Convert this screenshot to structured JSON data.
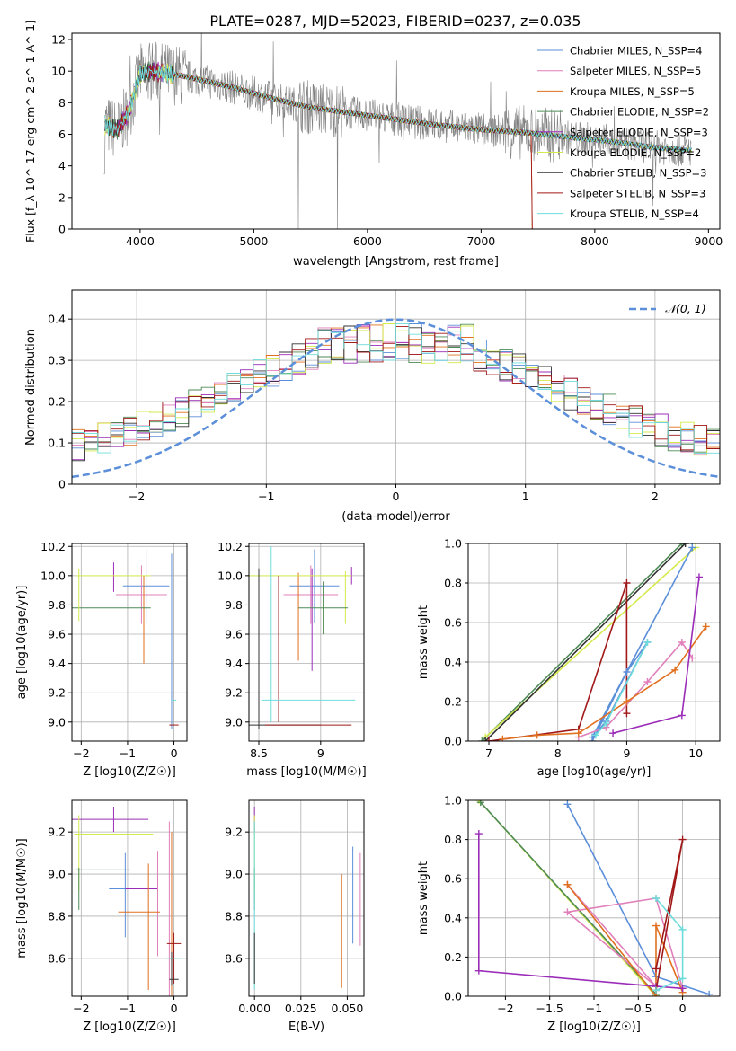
{
  "figure": {
    "title": "PLATE=0287, MJD=52023, FIBERID=0237, z=0.035"
  },
  "colors": {
    "chabrier_miles": "#5b8fd9",
    "salpeter_miles": "#e07fba",
    "kroupa_miles": "#e0701f",
    "chabrier_elodie": "#4e8a56",
    "salpeter_elodie": "#9b2db8",
    "kroupa_elodie": "#d4ea4c",
    "chabrier_stelib": "#333333",
    "salpeter_stelib": "#a01818",
    "kroupa_stelib": "#6fdcdc",
    "data": "#808080",
    "normal": "#5b8fd9"
  },
  "chart_data": [
    {
      "id": "spectrum",
      "type": "line",
      "title": "PLATE=0287, MJD=52023, FIBERID=0237, z=0.035",
      "xlabel": "wavelength [Angstrom, rest frame]",
      "ylabel": "Flux [f_λ 10^-17 erg cm^-2 s^-1 A^-1]",
      "xlim": [
        3400,
        9100
      ],
      "ylim": [
        0,
        12.4
      ],
      "xticks": [
        4000,
        5000,
        6000,
        7000,
        8000,
        9000
      ],
      "yticks": [
        0,
        2,
        4,
        6,
        8,
        10,
        12
      ],
      "legend_position": "top-right",
      "series": [
        {
          "name": "Chabrier MILES, N_SSP=4",
          "color_key": "chabrier_miles"
        },
        {
          "name": "Salpeter MILES, N_SSP=5",
          "color_key": "salpeter_miles"
        },
        {
          "name": "Kroupa MILES, N_SSP=5",
          "color_key": "kroupa_miles"
        },
        {
          "name": "Chabrier ELODIE, N_SSP=2",
          "color_key": "chabrier_elodie"
        },
        {
          "name": "Salpeter ELODIE, N_SSP=3",
          "color_key": "salpeter_elodie"
        },
        {
          "name": "Kroupa ELODIE, N_SSP=2",
          "color_key": "kroupa_elodie"
        },
        {
          "name": "Chabrier STELIB, N_SSP=3",
          "color_key": "chabrier_stelib"
        },
        {
          "name": "Salpeter STELIB, N_SSP=3",
          "color_key": "salpeter_stelib"
        },
        {
          "name": "Kroupa STELIB, N_SSP=4",
          "color_key": "kroupa_stelib"
        }
      ],
      "continuum": [
        [
          3680,
          6.6
        ],
        [
          3800,
          6.3
        ],
        [
          3900,
          7.4
        ],
        [
          4000,
          9.8
        ],
        [
          4100,
          10.0
        ],
        [
          4300,
          9.8
        ],
        [
          4500,
          9.5
        ],
        [
          4800,
          9.0
        ],
        [
          5000,
          8.6
        ],
        [
          5200,
          8.2
        ],
        [
          5500,
          7.7
        ],
        [
          5800,
          7.4
        ],
        [
          6000,
          7.2
        ],
        [
          6300,
          6.9
        ],
        [
          6600,
          6.6
        ],
        [
          7000,
          6.3
        ],
        [
          7400,
          6.1
        ],
        [
          7800,
          5.8
        ],
        [
          8200,
          5.5
        ],
        [
          8500,
          5.2
        ],
        [
          8800,
          5.0
        ]
      ]
    },
    {
      "id": "residuals",
      "type": "histogram",
      "xlabel": "(data-model)/error",
      "ylabel": "Normed distribution",
      "xlim": [
        -2.5,
        2.5
      ],
      "ylim": [
        0,
        0.47
      ],
      "xticks": [
        -2,
        -1,
        0,
        1,
        2
      ],
      "yticks": [
        0.0,
        0.1,
        0.2,
        0.3,
        0.4
      ],
      "grid": true,
      "bin_width": 0.1,
      "legend": "N(0,1)",
      "legend_position": "top-right"
    },
    {
      "id": "age_vs_Z",
      "type": "errorbar",
      "xlabel": "Z [log10(Z/Z☉)]",
      "ylabel": "age [log10(age/yr)]",
      "xlim": [
        -2.2,
        0.28
      ],
      "ylim": [
        8.87,
        10.22
      ],
      "xticks": [
        -2,
        -1,
        0
      ],
      "yticks": [
        9.0,
        9.2,
        9.4,
        9.6,
        9.8,
        10.0,
        10.2
      ],
      "grid": true,
      "points": [
        {
          "c": "chabrier_miles",
          "x": -0.6,
          "xe": 0.5,
          "y": 9.93,
          "ye": 0.25
        },
        {
          "c": "chabrier_miles",
          "x": -0.05,
          "xe": 0.0,
          "y": 9.55,
          "ye": 0.6
        },
        {
          "c": "salpeter_miles",
          "x": -0.7,
          "xe": 0.55,
          "y": 9.87,
          "ye": 0.2
        },
        {
          "c": "kroupa_miles",
          "x": -0.65,
          "xe": 0.0,
          "y": 9.7,
          "ye": 0.3
        },
        {
          "c": "chabrier_elodie",
          "x": -1.45,
          "xe": 0.95,
          "y": 9.78,
          "ye": 0.0
        },
        {
          "c": "salpeter_elodie",
          "x": -1.3,
          "xe": 0.0,
          "y": 9.99,
          "ye": 0.1
        },
        {
          "c": "kroupa_elodie",
          "x": -1.3,
          "xe": 0.8,
          "y": 10.0,
          "ye": 0.0
        },
        {
          "c": "kroupa_elodie",
          "x": -2.05,
          "xe": 0.0,
          "y": 9.87,
          "ye": 0.18
        },
        {
          "c": "chabrier_stelib",
          "x": -0.02,
          "xe": 0.0,
          "y": 9.5,
          "ye": 0.55
        },
        {
          "c": "salpeter_stelib",
          "x": 0.0,
          "xe": 0.1,
          "y": 8.98,
          "ye": 0.0
        },
        {
          "c": "kroupa_stelib",
          "x": 0.0,
          "xe": 0.05,
          "y": 9.15,
          "ye": 0.0
        }
      ]
    },
    {
      "id": "age_vs_mass",
      "type": "errorbar",
      "xlabel": "mass [log10(M/M☉)]",
      "xlim": [
        8.42,
        9.35
      ],
      "ylim": [
        8.87,
        10.22
      ],
      "xticks": [
        8.5,
        9.0
      ],
      "yticks": [
        9.0,
        9.2,
        9.4,
        9.6,
        9.8,
        10.0,
        10.2
      ],
      "grid": true,
      "points": [
        {
          "c": "chabrier_miles",
          "x": 8.95,
          "xe": 0.2,
          "y": 9.93,
          "ye": 0.25
        },
        {
          "c": "salpeter_miles",
          "x": 8.92,
          "xe": 0.22,
          "y": 9.87,
          "ye": 0.2
        },
        {
          "c": "salpeter_elodie",
          "x": 8.93,
          "xe": 0.0,
          "y": 9.7,
          "ye": 0.35
        },
        {
          "c": "salpeter_elodie",
          "x": 9.25,
          "xe": 0.0,
          "y": 10.0,
          "ye": 0.06
        },
        {
          "c": "kroupa_miles",
          "x": 8.82,
          "xe": 0.0,
          "y": 9.72,
          "ye": 0.3
        },
        {
          "c": "kroupa_elodie",
          "x": 8.8,
          "xe": 0.45,
          "y": 10.0,
          "ye": 0.0
        },
        {
          "c": "kroupa_elodie",
          "x": 9.2,
          "xe": 0.0,
          "y": 9.85,
          "ye": 0.18
        },
        {
          "c": "chabrier_elodie",
          "x": 9.02,
          "xe": 0.2,
          "y": 9.78,
          "ye": 0.18
        },
        {
          "c": "chabrier_stelib",
          "x": 8.5,
          "xe": 0.0,
          "y": 9.5,
          "ye": 0.55
        },
        {
          "c": "chabrier_stelib",
          "x": 8.7,
          "xe": 0.3,
          "y": 8.98,
          "ye": 0.0
        },
        {
          "c": "salpeter_stelib",
          "x": 8.66,
          "xe": 0.0,
          "y": 9.5,
          "ye": 0.5
        },
        {
          "c": "salpeter_stelib",
          "x": 8.9,
          "xe": 0.35,
          "y": 8.98,
          "ye": 0.0
        },
        {
          "c": "kroupa_stelib",
          "x": 8.6,
          "xe": 0.0,
          "y": 9.6,
          "ye": 0.6
        },
        {
          "c": "kroupa_stelib",
          "x": 8.9,
          "xe": 0.38,
          "y": 9.15,
          "ye": 0.0
        }
      ]
    },
    {
      "id": "weight_vs_age",
      "type": "line",
      "xlabel": "age [log10(age/yr)]",
      "ylabel": "mass weight",
      "xlim": [
        6.7,
        10.35
      ],
      "ylim": [
        0,
        1.0
      ],
      "xticks": [
        7,
        8,
        9,
        10
      ],
      "yticks": [
        0.0,
        0.2,
        0.4,
        0.6,
        0.8,
        1.0
      ],
      "grid": true,
      "series": [
        {
          "c": "chabrier_elodie",
          "points": [
            [
              6.9,
              0.0
            ],
            [
              9.8,
              1.0
            ]
          ]
        },
        {
          "c": "kroupa_elodie",
          "points": [
            [
              6.95,
              0.02
            ],
            [
              10.0,
              0.98
            ]
          ]
        },
        {
          "c": "chabrier_stelib",
          "points": [
            [
              6.95,
              0.0
            ],
            [
              9.85,
              1.0
            ]
          ]
        },
        {
          "c": "salpeter_stelib",
          "points": [
            [
              7.0,
              0.0
            ],
            [
              8.3,
              0.06
            ],
            [
              9.0,
              0.8
            ],
            [
              9.0,
              0.14
            ]
          ]
        },
        {
          "c": "chabrier_miles",
          "points": [
            [
              8.5,
              0.0
            ],
            [
              9.0,
              0.35
            ],
            [
              9.3,
              0.5
            ],
            [
              8.7,
              0.1
            ],
            [
              8.5,
              0.02
            ],
            [
              9.95,
              0.98
            ]
          ]
        },
        {
          "c": "salpeter_miles",
          "points": [
            [
              8.3,
              0.02
            ],
            [
              8.7,
              0.07
            ],
            [
              9.3,
              0.3
            ],
            [
              9.8,
              0.5
            ],
            [
              9.95,
              0.42
            ]
          ]
        },
        {
          "c": "kroupa_miles",
          "points": [
            [
              7.2,
              0.01
            ],
            [
              7.7,
              0.03
            ],
            [
              8.3,
              0.04
            ],
            [
              9.0,
              0.2
            ],
            [
              9.7,
              0.36
            ],
            [
              10.15,
              0.58
            ]
          ]
        },
        {
          "c": "salpeter_elodie",
          "points": [
            [
              8.8,
              0.04
            ],
            [
              9.8,
              0.13
            ],
            [
              10.05,
              0.83
            ]
          ]
        },
        {
          "c": "kroupa_stelib",
          "points": [
            [
              8.55,
              0.03
            ],
            [
              8.7,
              0.09
            ],
            [
              9.3,
              0.5
            ]
          ]
        }
      ]
    },
    {
      "id": "mass_vs_Z",
      "type": "errorbar",
      "xlabel": "Z [log10(Z/Z☉)]",
      "ylabel": "mass [log10(M/M☉)]",
      "xlim": [
        -2.2,
        0.28
      ],
      "ylim": [
        8.42,
        9.35
      ],
      "xticks": [
        -2,
        -1,
        0
      ],
      "yticks": [
        8.6,
        8.8,
        9.0,
        9.2
      ],
      "grid": true,
      "points": [
        {
          "c": "salpeter_elodie",
          "x": -1.4,
          "xe": 0.85,
          "y": 9.26,
          "ye": 0.0
        },
        {
          "c": "salpeter_elodie",
          "x": -1.3,
          "xe": 0.0,
          "y": 9.26,
          "ye": 0.06
        },
        {
          "c": "kroupa_elodie",
          "x": -1.3,
          "xe": 0.85,
          "y": 9.19,
          "ye": 0.0
        },
        {
          "c": "kroupa_elodie",
          "x": -2.05,
          "xe": 0.0,
          "y": 9.1,
          "ye": 0.18
        },
        {
          "c": "chabrier_elodie",
          "x": -1.55,
          "xe": 0.6,
          "y": 9.02,
          "ye": 0.0
        },
        {
          "c": "chabrier_elodie",
          "x": -2.05,
          "xe": 0.0,
          "y": 8.93,
          "ye": 0.1
        },
        {
          "c": "chabrier_miles",
          "x": -0.9,
          "xe": 0.5,
          "y": 8.93,
          "ye": 0.0
        },
        {
          "c": "chabrier_miles",
          "x": -1.05,
          "xe": 0.0,
          "y": 8.9,
          "ye": 0.2
        },
        {
          "c": "salpeter_elodie",
          "x": -0.7,
          "xe": 0.35,
          "y": 8.93,
          "ye": 0.0
        },
        {
          "c": "salpeter_miles",
          "x": -0.35,
          "xe": 0.0,
          "y": 8.86,
          "ye": 0.25
        },
        {
          "c": "salpeter_miles",
          "x": -0.1,
          "xe": 0.0,
          "y": 8.8,
          "ye": 0.45
        },
        {
          "c": "kroupa_miles",
          "x": -0.75,
          "xe": 0.45,
          "y": 8.82,
          "ye": 0.0
        },
        {
          "c": "kroupa_miles",
          "x": -0.55,
          "xe": 0.0,
          "y": 8.75,
          "ye": 0.3
        },
        {
          "c": "kroupa_miles",
          "x": -0.05,
          "xe": 0.0,
          "y": 8.8,
          "ye": 0.4
        },
        {
          "c": "salpeter_stelib",
          "x": 0.0,
          "xe": 0.15,
          "y": 8.67,
          "ye": 0.0
        },
        {
          "c": "salpeter_stelib",
          "x": 0.0,
          "xe": 0.0,
          "y": 8.6,
          "ye": 0.12
        },
        {
          "c": "kroupa_stelib",
          "x": 0.0,
          "xe": 0.15,
          "y": 8.6,
          "ye": 0.0
        },
        {
          "c": "chabrier_stelib",
          "x": 0.0,
          "xe": 0.1,
          "y": 8.5,
          "ye": 0.0
        },
        {
          "c": "chabrier_stelib",
          "x": -0.05,
          "xe": 0.0,
          "y": 8.55,
          "ye": 0.08
        }
      ]
    },
    {
      "id": "mass_vs_ebv",
      "type": "errorbar",
      "xlabel": "E(B-V)",
      "xlim": [
        -0.003,
        0.059
      ],
      "ylim": [
        8.42,
        9.35
      ],
      "xticks": [
        0.0,
        0.025,
        0.05
      ],
      "xtick_labels": [
        "0.000",
        "0.025",
        "0.050"
      ],
      "yticks": [
        8.6,
        8.8,
        9.0,
        9.2
      ],
      "grid": true,
      "points": [
        {
          "c": "salpeter_elodie",
          "x": 0.0,
          "xe": 0.0,
          "y": 9.26,
          "ye": 0.06
        },
        {
          "c": "kroupa_elodie",
          "x": 0.0,
          "xe": 0.0,
          "y": 9.1,
          "ye": 0.18
        },
        {
          "c": "chabrier_elodie",
          "x": 0.0,
          "xe": 0.0,
          "y": 8.93,
          "ye": 0.1
        },
        {
          "c": "kroupa_stelib",
          "x": 0.0,
          "xe": 0.0,
          "y": 8.85,
          "ye": 0.4
        },
        {
          "c": "chabrier_stelib",
          "x": 0.0,
          "xe": 0.0,
          "y": 8.6,
          "ye": 0.12
        },
        {
          "c": "kroupa_miles",
          "x": 0.047,
          "xe": 0.0,
          "y": 8.73,
          "ye": 0.27
        },
        {
          "c": "chabrier_miles",
          "x": 0.053,
          "xe": 0.0,
          "y": 8.9,
          "ye": 0.23
        },
        {
          "c": "salpeter_miles",
          "x": 0.057,
          "xe": 0.0,
          "y": 8.88,
          "ye": 0.22
        }
      ]
    },
    {
      "id": "weight_vs_Z",
      "type": "line",
      "xlabel": "Z [log10(Z/Z☉)]",
      "ylabel": "mass weight",
      "xlim": [
        -2.42,
        0.42
      ],
      "ylim": [
        0,
        1.0
      ],
      "xticks": [
        -2.0,
        -1.5,
        -1.0,
        -0.5,
        0.0
      ],
      "yticks": [
        0.0,
        0.2,
        0.4,
        0.6,
        0.8,
        1.0
      ],
      "grid": true,
      "series": [
        {
          "c": "kroupa_elodie",
          "points": [
            [
              -2.3,
              1.0
            ],
            [
              -0.3,
              0.0
            ]
          ]
        },
        {
          "c": "chabrier_elodie",
          "points": [
            [
              -2.28,
              0.99
            ],
            [
              -0.3,
              0.01
            ]
          ]
        },
        {
          "c": "chabrier_miles",
          "points": [
            [
              -1.3,
              0.98
            ],
            [
              -0.3,
              0.1
            ],
            [
              0.3,
              0.01
            ]
          ]
        },
        {
          "c": "salpeter_miles",
          "points": [
            [
              -1.3,
              0.57
            ],
            [
              -0.3,
              0.05
            ],
            [
              -1.3,
              0.43
            ],
            [
              -0.3,
              0.5
            ],
            [
              0.0,
              0.04
            ]
          ]
        },
        {
          "c": "kroupa_miles",
          "points": [
            [
              -1.3,
              0.57
            ],
            [
              -0.3,
              0.0
            ],
            [
              -0.3,
              0.36
            ],
            [
              0.0,
              0.02
            ]
          ]
        },
        {
          "c": "salpeter_elodie",
          "points": [
            [
              -2.3,
              0.83
            ],
            [
              -2.3,
              0.13
            ],
            [
              -0.3,
              0.05
            ],
            [
              0.0,
              0.04
            ]
          ]
        },
        {
          "c": "salpeter_stelib",
          "points": [
            [
              -0.3,
              0.03
            ],
            [
              0.0,
              0.8
            ],
            [
              -0.3,
              0.14
            ]
          ]
        },
        {
          "c": "kroupa_stelib",
          "points": [
            [
              -0.3,
              0.5
            ],
            [
              0.0,
              0.34
            ],
            [
              0.0,
              0.09
            ],
            [
              -0.3,
              0.03
            ]
          ]
        }
      ]
    }
  ]
}
